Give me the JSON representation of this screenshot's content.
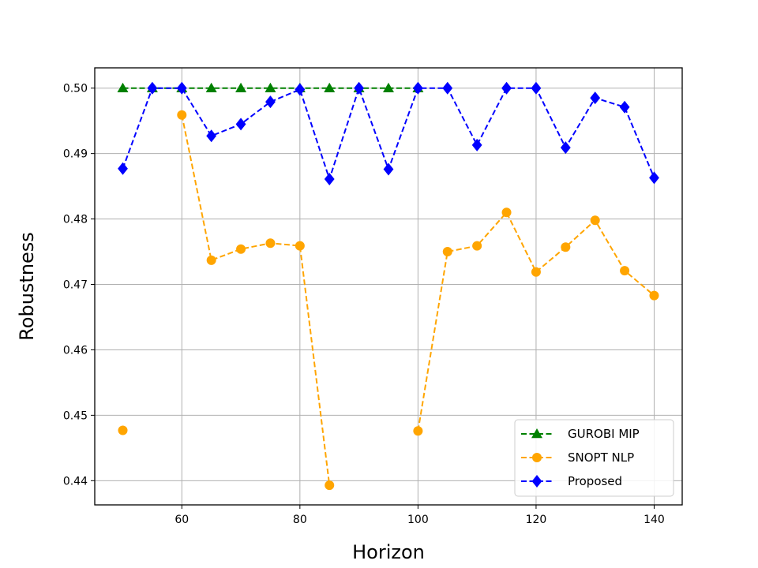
{
  "chart_data": {
    "type": "line",
    "title": "",
    "xlabel": "Horizon",
    "ylabel": "Robustness",
    "xlim": [
      45.25,
      144.75
    ],
    "ylim": [
      0.4363,
      0.5031
    ],
    "xticks": [
      60,
      80,
      100,
      120,
      140
    ],
    "yticks": [
      0.44,
      0.45,
      0.46,
      0.47,
      0.48,
      0.49,
      0.5
    ],
    "ytick_labels": [
      "0.44",
      "0.45",
      "0.46",
      "0.47",
      "0.48",
      "0.49",
      "0.50"
    ],
    "grid": true,
    "legend_position": "lower-right",
    "x": [
      50,
      55,
      60,
      65,
      70,
      75,
      80,
      85,
      90,
      95,
      100,
      105,
      110,
      115,
      120,
      125,
      130,
      135,
      140
    ],
    "series": [
      {
        "name": "GUROBI MIP",
        "color": "#008000",
        "marker": "triangle",
        "linestyle": "dashed",
        "values": [
          0.5,
          0.5,
          0.5,
          0.5,
          0.5,
          0.5,
          0.5,
          0.5,
          0.5,
          0.5,
          0.5,
          null,
          null,
          null,
          null,
          null,
          null,
          null,
          null
        ]
      },
      {
        "name": "SNOPT NLP",
        "color": "#FFA500",
        "marker": "circle",
        "linestyle": "dashed",
        "values": [
          0.4477,
          null,
          0.4959,
          0.4737,
          0.4754,
          0.4763,
          0.4759,
          0.4393,
          null,
          null,
          0.4476,
          0.475,
          0.4759,
          0.481,
          0.4719,
          0.4757,
          0.4798,
          0.4721,
          0.4683
        ]
      },
      {
        "name": "Proposed",
        "color": "#0000FF",
        "marker": "diamond",
        "linestyle": "dashed",
        "values": [
          0.4877,
          0.5,
          0.5,
          0.4927,
          0.4945,
          0.4979,
          0.4998,
          0.4861,
          0.5,
          0.4876,
          0.5,
          0.5,
          0.4913,
          0.5,
          0.5,
          0.4909,
          0.4985,
          0.4971,
          0.4863
        ]
      }
    ]
  }
}
